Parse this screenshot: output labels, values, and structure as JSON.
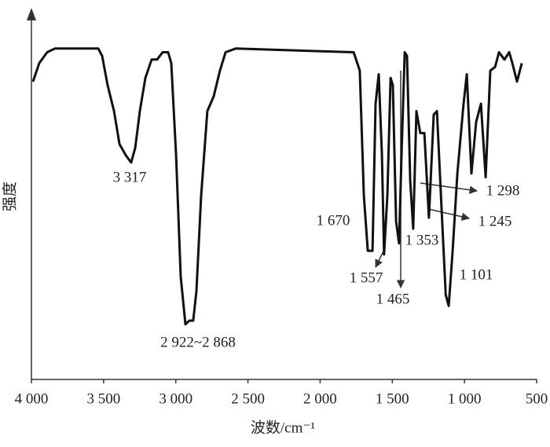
{
  "chart_data": {
    "type": "line",
    "x_label": "波数/cm⁻¹",
    "y_label": "强度",
    "xlim": [
      4000,
      500
    ],
    "xticks": [
      {
        "value": 4000,
        "label": "4 000"
      },
      {
        "value": 3500,
        "label": "3 500"
      },
      {
        "value": 3000,
        "label": "3 000"
      },
      {
        "value": 2500,
        "label": "2 500"
      },
      {
        "value": 2000,
        "label": "2 000"
      },
      {
        "value": 1500,
        "label": "1 500"
      },
      {
        "value": 1000,
        "label": "1 000"
      },
      500
    ],
    "ylim": [
      0,
      100
    ],
    "series": [
      {
        "color": "#111111",
        "x": [
          3989,
          3946,
          3891,
          3837,
          3728,
          3537,
          3510,
          3472,
          3428,
          3390,
          3347,
          3309,
          3281,
          3249,
          3211,
          3167,
          3129,
          3091,
          3053,
          3031,
          2998,
          2966,
          2933,
          2906,
          2879,
          2857,
          2824,
          2781,
          2737,
          2694,
          2655,
          2585,
          1768,
          1725,
          1697,
          1670,
          1637,
          1616,
          1594,
          1572,
          1557,
          1534,
          1512,
          1496,
          1474,
          1453,
          1436,
          1414,
          1398,
          1376,
          1355,
          1333,
          1306,
          1278,
          1246,
          1213,
          1191,
          1158,
          1130,
          1109,
          1082,
          1049,
          1006,
          984,
          952,
          919,
          886,
          853,
          821,
          788,
          761,
          723,
          690,
          668,
          636,
          603
        ],
        "values": [
          81,
          86,
          89,
          90,
          90,
          90,
          88,
          80,
          73,
          64,
          61,
          59,
          63,
          73,
          82,
          87,
          87,
          89,
          89,
          86,
          61,
          28,
          15,
          16,
          16,
          24,
          50,
          73,
          77,
          84,
          89,
          90,
          89,
          84,
          50,
          35,
          35,
          75,
          83,
          61,
          34,
          50,
          82,
          80,
          43,
          37,
          61,
          89,
          88,
          54,
          41,
          73,
          67,
          67,
          44,
          72,
          73,
          46,
          23,
          20,
          35,
          56,
          75,
          83,
          56,
          70,
          75,
          55,
          84,
          85,
          89,
          87,
          89,
          86,
          81,
          86
        ]
      }
    ],
    "annotations": [
      "3 317",
      "2 922~2 868",
      "1 670",
      "1 557",
      "1 465",
      "1 353",
      "1 298",
      "1 245",
      "1 101"
    ]
  }
}
